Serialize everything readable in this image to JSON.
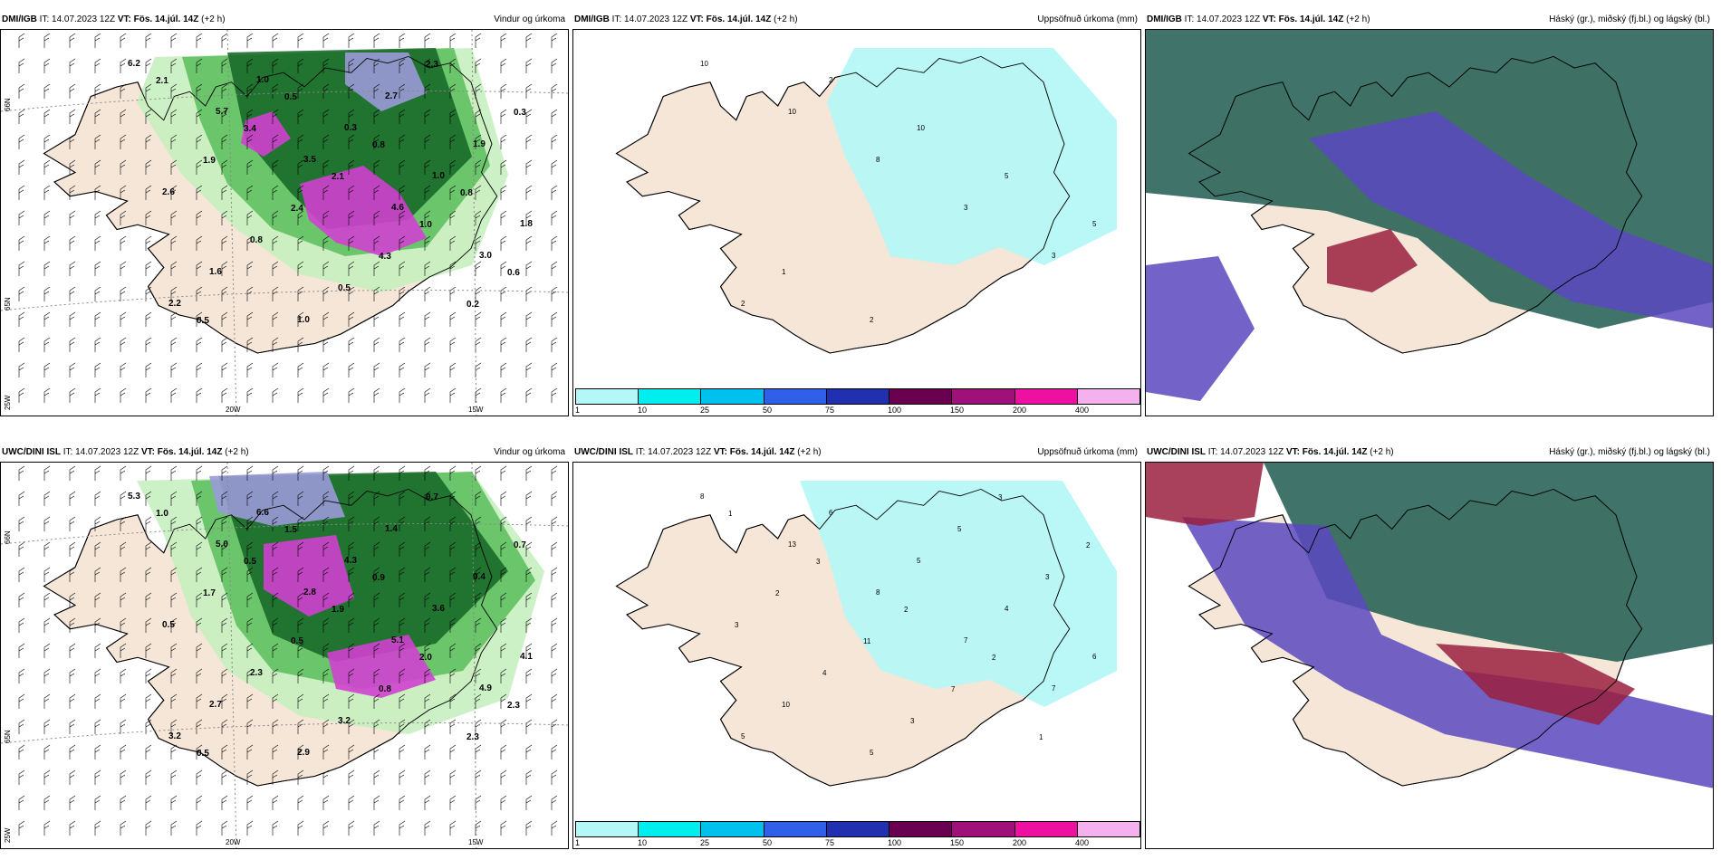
{
  "panels": [
    {
      "id": "p1",
      "source": "DMI/IGB",
      "it": "IT: 14.07.2023 12Z",
      "vt_label": "VT:",
      "vt": "Fös. 14.júl. 14Z",
      "lead": "(+2 h)",
      "title": "Vindur og úrkoma",
      "kind": "wind",
      "values": [
        "6.2",
        "5.7",
        "3.5",
        "4.6",
        "3.0",
        "2.2",
        "1.0",
        "0.3",
        "1.0",
        "1.8",
        "1.6",
        "1.0",
        "2.7",
        "1.9",
        "2.6",
        "0.8",
        "0.5",
        "2.3",
        "0.3",
        "1.9",
        "2.4",
        "4.3",
        "0.2",
        "2.1",
        "3.4",
        "2.1",
        "1.0",
        "0.6",
        "0.5",
        "0.5",
        "0.8",
        "0.8"
      ],
      "axes": {
        "lat": [
          "66N",
          "65N",
          "25W"
        ],
        "lon": [
          "20W",
          "15W"
        ]
      }
    },
    {
      "id": "p2",
      "source": "DMI/IGB",
      "it": "IT: 14.07.2023 12Z",
      "vt_label": "VT:",
      "vt": "Fös. 14.júl. 14Z",
      "lead": "(+2 h)",
      "title": "Uppsöfnuð úrkoma (mm)",
      "kind": "accum",
      "values": [
        "10",
        "10",
        "8",
        "3",
        "3",
        "2",
        "2",
        "10",
        "5",
        "5",
        "1",
        "2"
      ]
    },
    {
      "id": "p3",
      "source": "DMI/IGB",
      "it": "IT: 14.07.2023 12Z",
      "vt_label": "VT:",
      "vt": "Fös. 14.júl. 14Z",
      "lead": "(+2 h)",
      "title": "Háský (gr.), miðský (fj.bl.) og lágský (bl.)",
      "kind": "cloud"
    },
    {
      "id": "p4",
      "source": "UWC/DINI ISL",
      "it": "IT: 14.07.2023 12Z",
      "vt_label": "VT:",
      "vt": "Fös. 14.júl. 14Z",
      "lead": "(+2 h)",
      "title": "Vindur og úrkoma",
      "kind": "wind",
      "values": [
        "5.3",
        "5.0",
        "2.8",
        "5.1",
        "4.9",
        "3.2",
        "6.6",
        "4.3",
        "3.6",
        "4.1",
        "2.7",
        "2.9",
        "1.4",
        "0.4",
        "0.5",
        "2.3",
        "3.2",
        "0.7",
        "0.7",
        "1.7",
        "0.5",
        "0.8",
        "2.3",
        "1.0",
        "0.5",
        "1.9",
        "2.0",
        "2.3",
        "0.5",
        "1.5",
        "0.9"
      ],
      "axes": {
        "lat": [
          "66N",
          "65N",
          "25W"
        ],
        "lon": [
          "20W",
          "15W"
        ]
      }
    },
    {
      "id": "p5",
      "source": "UWC/DINI ISL",
      "it": "IT: 14.07.2023 12Z",
      "vt_label": "VT:",
      "vt": "Fös. 14.júl. 14Z",
      "lead": "(+2 h)",
      "title": "Uppsöfnuð úrkoma (mm)",
      "kind": "accum",
      "values": [
        "8",
        "13",
        "8",
        "7",
        "7",
        "5",
        "6",
        "5",
        "4",
        "6",
        "10",
        "5",
        "5",
        "3",
        "3",
        "4",
        "3",
        "3",
        "2",
        "2",
        "11",
        "7",
        "1",
        "1",
        "3",
        "2",
        "2"
      ]
    },
    {
      "id": "p6",
      "source": "UWC/DINI ISL",
      "it": "IT: 14.07.2023 12Z",
      "vt_label": "VT:",
      "vt": "Fös. 14.júl. 14Z",
      "lead": "(+2 h)",
      "title": "Háský (gr.), miðský (fj.bl.) og lágský (bl.)",
      "kind": "cloud"
    }
  ],
  "colorbar": {
    "colors": [
      "#b3f7f7",
      "#00eeee",
      "#00c0ee",
      "#3060e8",
      "#2030b0",
      "#6a0050",
      "#a0107a",
      "#ee10a0",
      "#f5b0f0"
    ],
    "ticks": [
      "1",
      "10",
      "25",
      "50",
      "75",
      "100",
      "150",
      "200",
      "400"
    ]
  },
  "colors": {
    "land": "#f5e6d8",
    "ocean": "#ffffff",
    "precip_light": "#c8f0c0",
    "precip_mid": "#60c060",
    "precip_dark": "#1a6a2a",
    "precip_heavy": "#9a9ad8",
    "convective": "#d040d0",
    "accum": "#b3f7f7",
    "high_cloud": "#1e5a50",
    "mid_cloud": "#5a48c0",
    "low_cloud": "#9a2040"
  }
}
